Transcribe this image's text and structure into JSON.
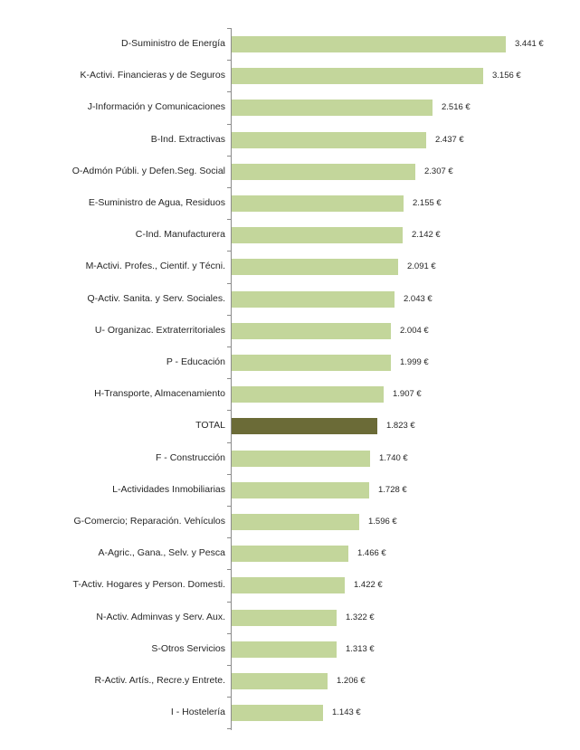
{
  "chart_data": {
    "type": "bar",
    "orientation": "horizontal",
    "title": "",
    "xlabel": "",
    "ylabel": "",
    "grid": false,
    "legend": null,
    "value_suffix": " €",
    "colors": {
      "default": "#c3d69b",
      "highlight": "#6b6b37"
    },
    "categories": [
      "D-Suministro de Energía",
      "K-Activi. Financieras y de Seguros",
      "J-Información y Comunicaciones",
      "B-Ind. Extractivas",
      "O-Admón Públi. y Defen.Seg. Social",
      "E-Suministro de Agua, Residuos",
      "C-Ind. Manufacturera",
      "M-Activi. Profes., Cientif. y Técni.",
      "Q-Activ. Sanita. y Serv. Sociales.",
      "U- Organizac. Extraterritoriales",
      "P - Educación",
      "H-Transporte, Almacenamiento",
      "TOTAL",
      "F - Construcción",
      "L-Actividades Inmobiliarias",
      "G-Comercio; Reparación. Vehículos",
      "A-Agric., Gana., Selv. y Pesca",
      "T-Activ. Hogares y Person. Domesti.",
      "N-Activ. Adminvas y Serv. Aux.",
      "S-Otros Servicios",
      "R-Activ. Artís., Recre.y Entrete.",
      "I - Hostelería"
    ],
    "values": [
      3441,
      3156,
      2516,
      2437,
      2307,
      2155,
      2142,
      2091,
      2043,
      2004,
      1999,
      1907,
      1823,
      1740,
      1728,
      1596,
      1466,
      1422,
      1322,
      1313,
      1206,
      1143
    ],
    "value_labels": [
      "3.441 €",
      "3.156 €",
      "2.516 €",
      "2.437 €",
      "2.307 €",
      "2.155 €",
      "2.142 €",
      "2.091 €",
      "2.043 €",
      "2.004 €",
      "1.999 €",
      "1.907 €",
      "1.823 €",
      "1.740 €",
      "1.728 €",
      "1.596 €",
      "1.466 €",
      "1.422 €",
      "1.322 €",
      "1.313 €",
      "1.206 €",
      "1.143 €"
    ],
    "highlight_index": 12,
    "xlim": [
      0,
      3441
    ]
  }
}
